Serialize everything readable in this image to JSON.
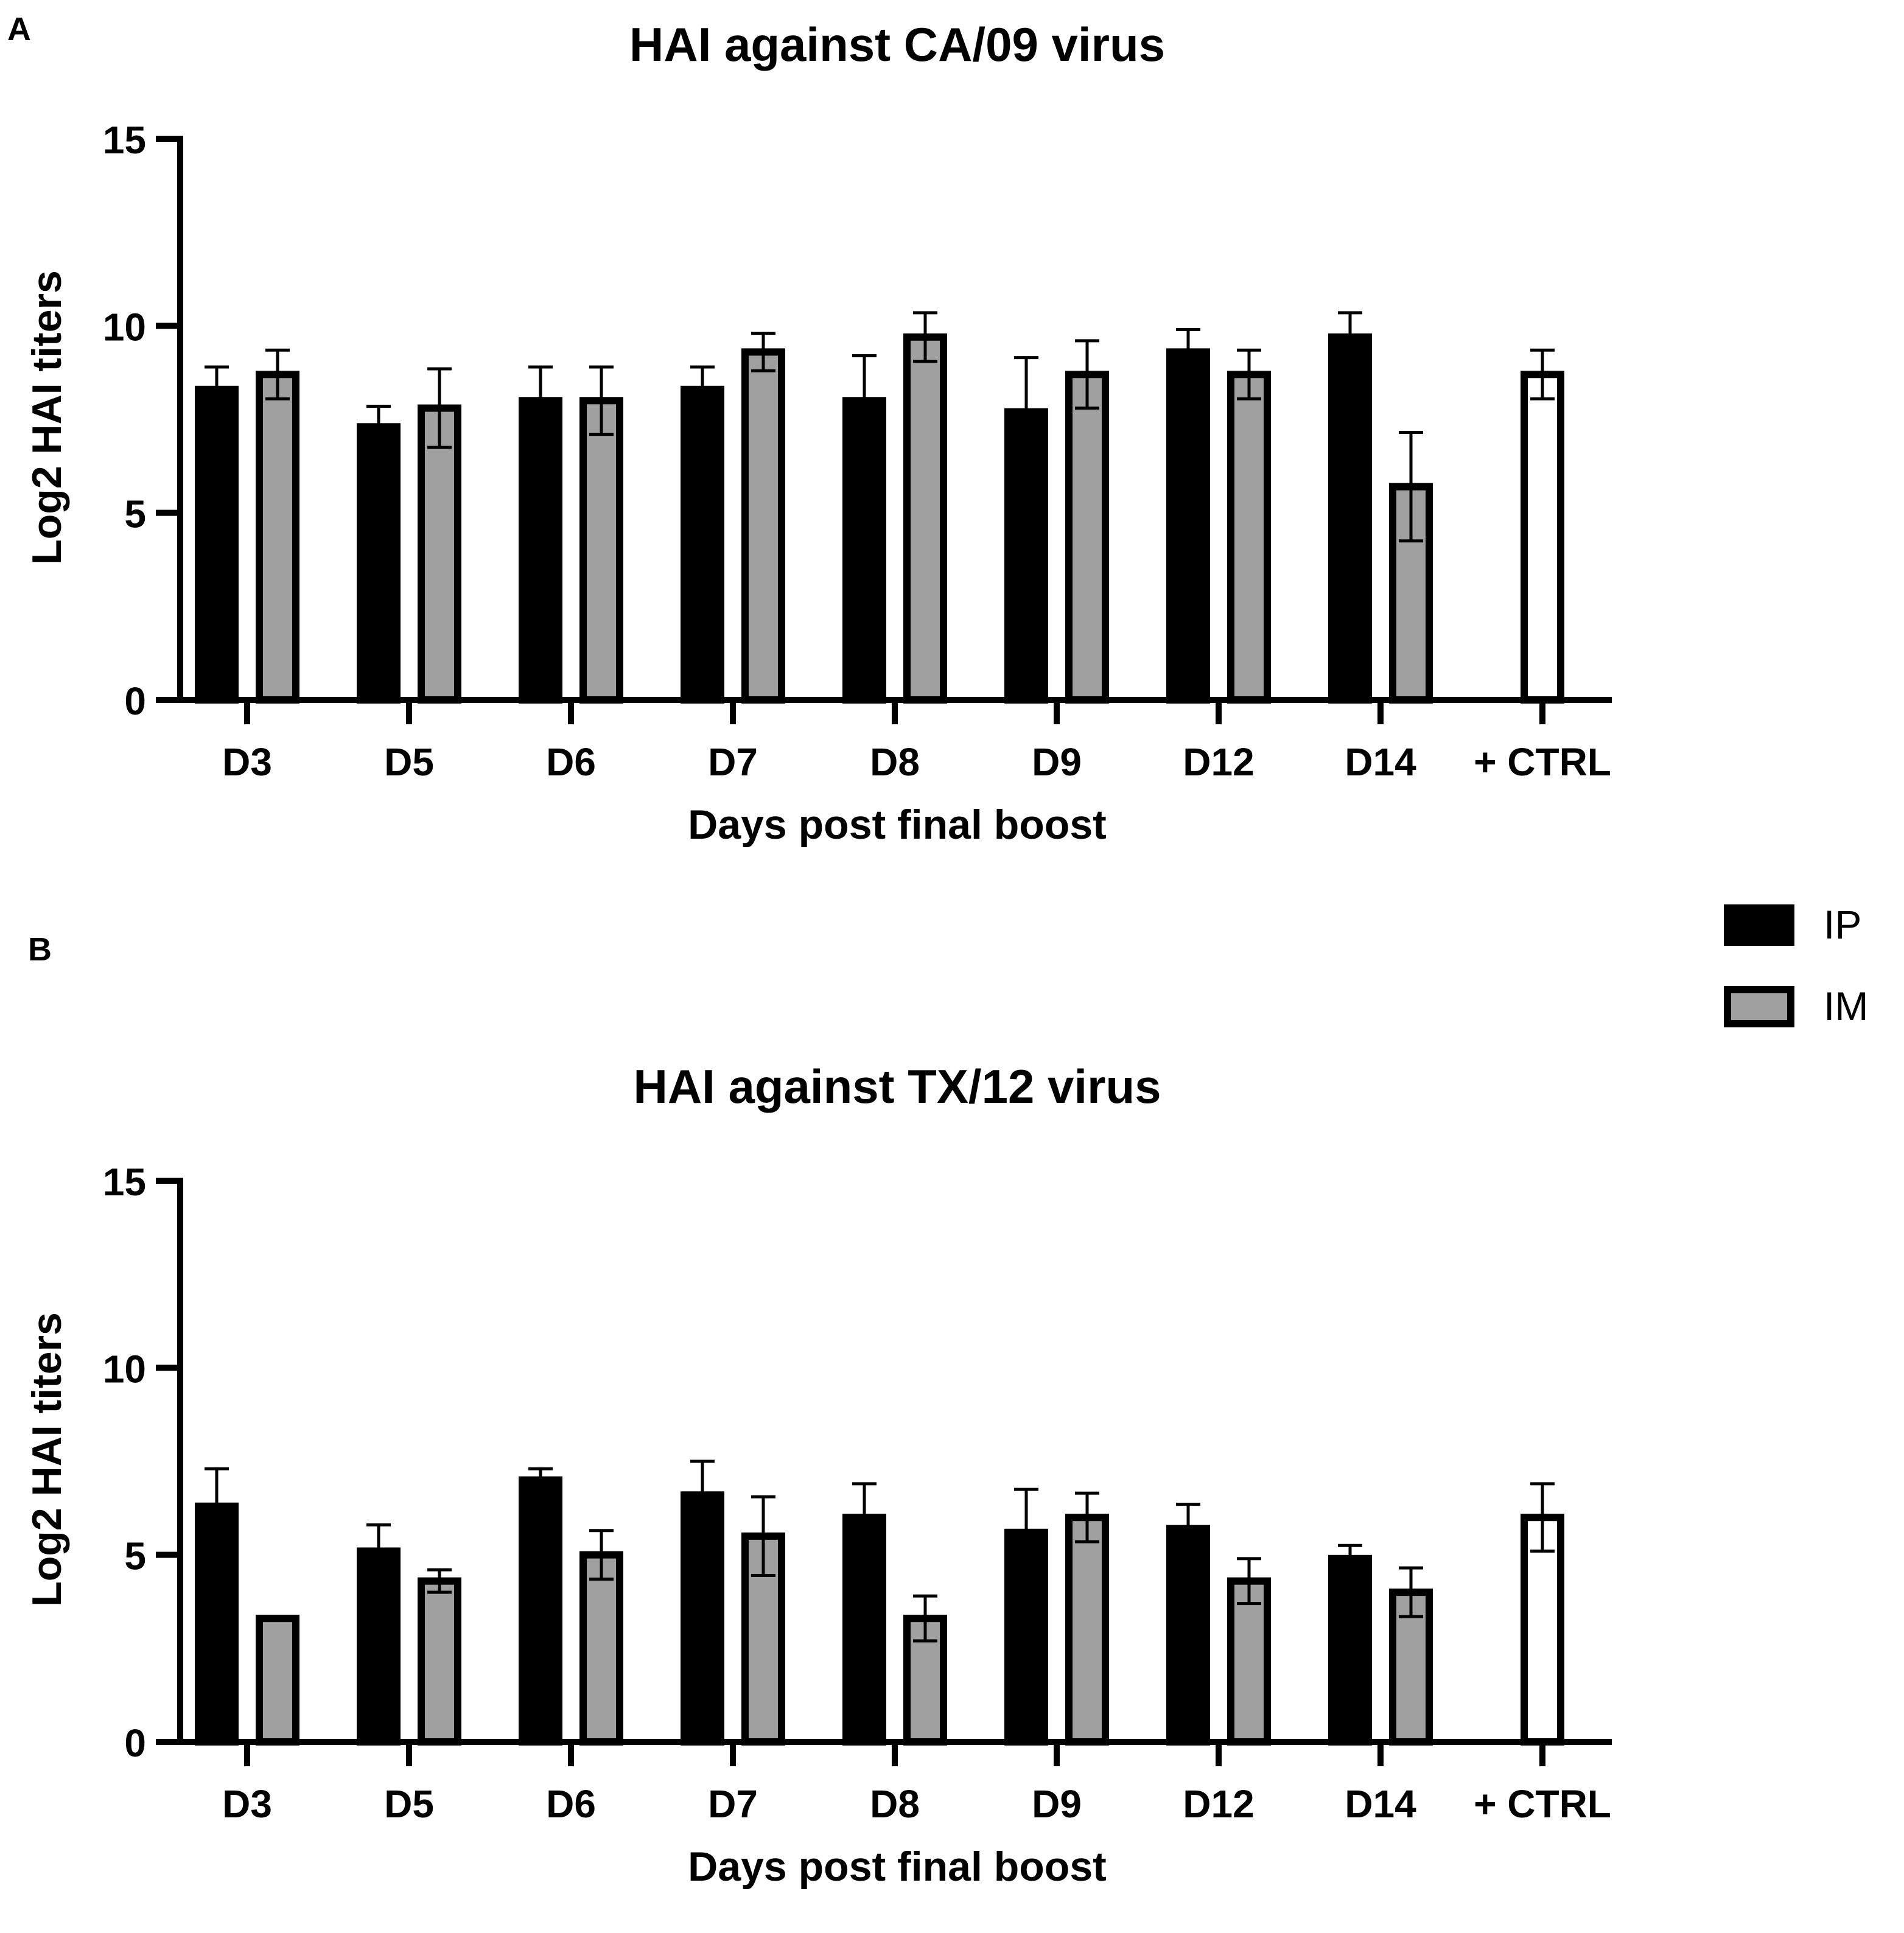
{
  "panel_labels": [
    "A",
    "B"
  ],
  "legend": [
    {
      "name": "IP",
      "color": "#000000"
    },
    {
      "name": "IM",
      "color": "#a0a0a0"
    }
  ],
  "colors": {
    "ip": "#000000",
    "im": "#a0a0a0",
    "ctrl": "#ffffff",
    "stroke": "#000000"
  },
  "chart_data": [
    {
      "type": "bar",
      "panel": "A",
      "title": "HAI against CA/09 virus",
      "xlabel": "Days post final boost",
      "ylabel": "Log2 HAI titers",
      "ylim": [
        0,
        15
      ],
      "yticks": [
        0,
        5,
        10,
        15
      ],
      "grid": false,
      "categories": [
        "D3",
        "D5",
        "D6",
        "D7",
        "D8",
        "D9",
        "D12",
        "D14",
        "+ CTRL"
      ],
      "series": [
        {
          "name": "IP",
          "values": [
            8.3,
            7.3,
            8.0,
            8.3,
            8.0,
            7.7,
            9.3,
            9.7,
            null
          ],
          "errors": [
            0.6,
            0.55,
            0.9,
            0.6,
            1.2,
            1.45,
            0.6,
            0.65,
            null
          ]
        },
        {
          "name": "IM",
          "values": [
            8.7,
            7.8,
            8.0,
            9.3,
            9.7,
            8.7,
            8.7,
            5.7,
            null
          ],
          "errors": [
            0.65,
            1.05,
            0.9,
            0.5,
            0.65,
            0.9,
            0.65,
            1.45,
            null
          ]
        },
        {
          "name": "+ CTRL",
          "values": [
            null,
            null,
            null,
            null,
            null,
            null,
            null,
            null,
            8.7
          ],
          "errors": [
            null,
            null,
            null,
            null,
            null,
            null,
            null,
            null,
            0.65
          ]
        }
      ]
    },
    {
      "type": "bar",
      "panel": "B",
      "title": "HAI against TX/12 virus",
      "xlabel": "Days post final boost",
      "ylabel": "Log2 HAI titers",
      "ylim": [
        0,
        15
      ],
      "yticks": [
        0,
        5,
        10,
        15
      ],
      "grid": false,
      "categories": [
        "D3",
        "D5",
        "D6",
        "D7",
        "D8",
        "D9",
        "D12",
        "D14",
        "+ CTRL"
      ],
      "series": [
        {
          "name": "IP",
          "values": [
            6.3,
            5.1,
            7.0,
            6.6,
            6.0,
            5.6,
            5.7,
            4.9,
            null
          ],
          "errors": [
            1.0,
            0.7,
            0.3,
            0.9,
            0.9,
            1.15,
            0.65,
            0.35,
            null
          ]
        },
        {
          "name": "IM",
          "values": [
            3.3,
            4.3,
            5.0,
            5.5,
            3.3,
            6.0,
            4.3,
            4.0,
            null
          ],
          "errors": [
            0.0,
            0.3,
            0.65,
            1.05,
            0.6,
            0.65,
            0.6,
            0.65,
            null
          ]
        },
        {
          "name": "+ CTRL",
          "values": [
            null,
            null,
            null,
            null,
            null,
            null,
            null,
            null,
            6.0
          ],
          "errors": [
            null,
            null,
            null,
            null,
            null,
            null,
            null,
            null,
            0.9
          ]
        }
      ]
    }
  ]
}
